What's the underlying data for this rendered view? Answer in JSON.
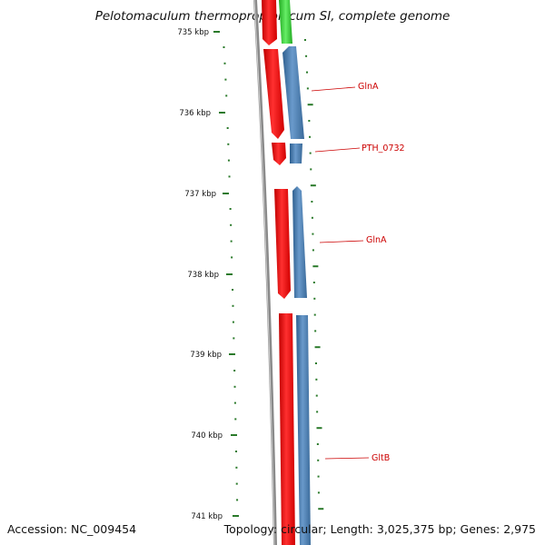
{
  "title": "Pelotomaculum thermopropionicum SI, complete genome",
  "accession": "Accession: NC_009454",
  "summary": "Topology: circular; Length: 3,025,375 bp; Genes: 2,975",
  "ruler": {
    "ticks": [
      "735 kbp",
      "736 kbp",
      "737 kbp",
      "738 kbp",
      "739 kbp",
      "740 kbp",
      "741 kbp"
    ],
    "tick_color": "#2a7a2a"
  },
  "genes": [
    {
      "name": "GlnA"
    },
    {
      "name": "PTH_0732"
    },
    {
      "name": "GlnA"
    },
    {
      "name": "GltB"
    }
  ],
  "colors": {
    "backbone": "#8a8a8a",
    "forward": "#ff0000",
    "reverse": "#4a7fb5",
    "other": "#33cc33",
    "label": "#cc0000"
  }
}
